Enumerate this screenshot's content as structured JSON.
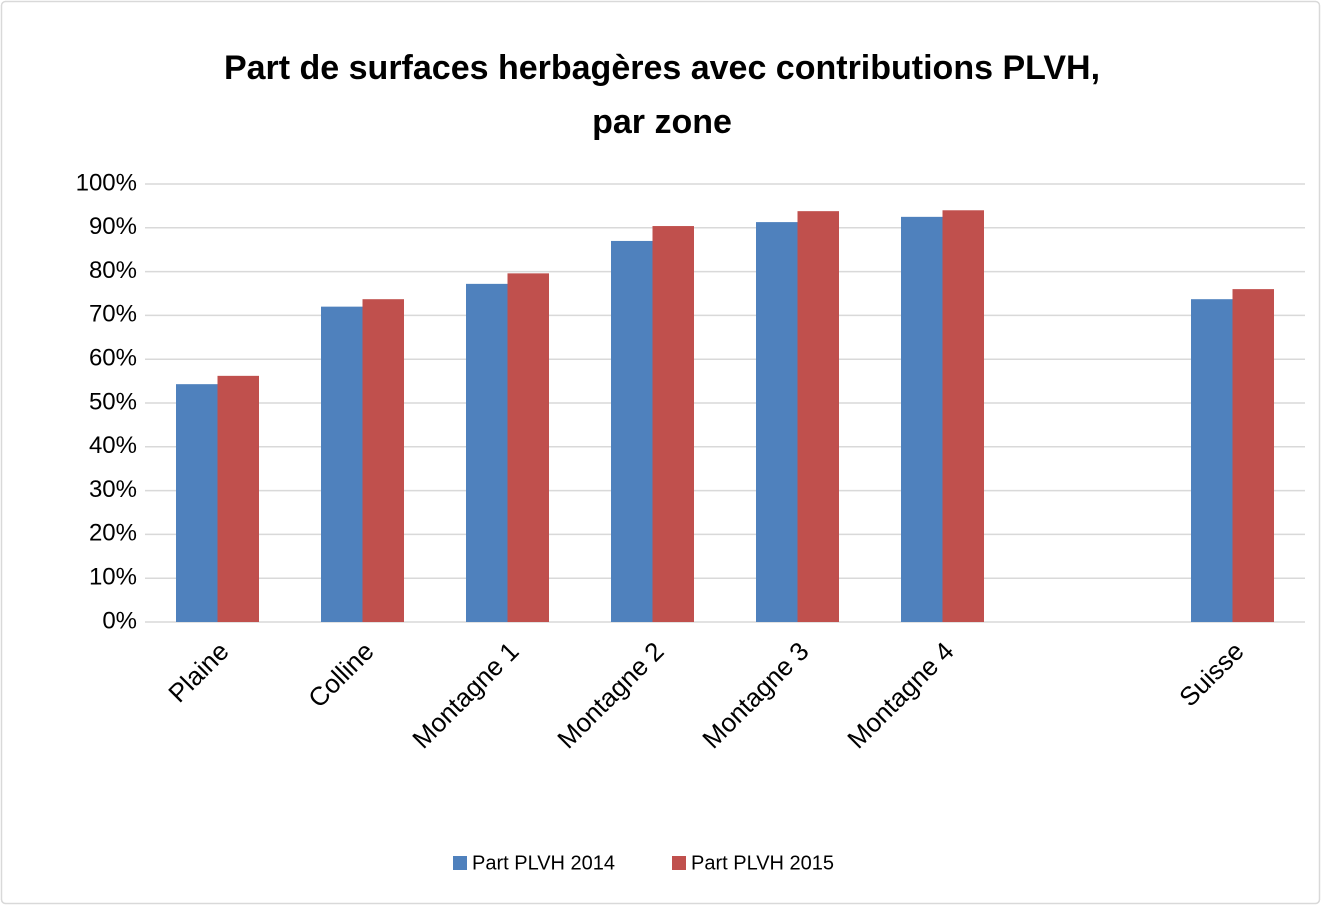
{
  "chart_data": {
    "type": "bar",
    "title": [
      "Part de surfaces herbagères avec contributions PLVH,",
      "par zone"
    ],
    "categories": [
      "Plaine",
      "Colline",
      "Montagne 1",
      "Montagne 2",
      "Montagne 3",
      "Montagne 4",
      null,
      "Suisse"
    ],
    "series": [
      {
        "name": "Part PLVH 2014",
        "color": "#4f81bd",
        "values": [
          54.3,
          72,
          77.2,
          87,
          91.3,
          92.5,
          null,
          73.7
        ]
      },
      {
        "name": "Part PLVH 2015",
        "color": "#c0504d",
        "values": [
          56.2,
          73.7,
          79.6,
          90.4,
          93.8,
          94,
          null,
          76
        ]
      }
    ],
    "ylim": [
      0,
      100
    ],
    "yticks": [
      {
        "value": 0,
        "label": "0%"
      },
      {
        "value": 10,
        "label": "10%"
      },
      {
        "value": 20,
        "label": "20%"
      },
      {
        "value": 30,
        "label": "30%"
      },
      {
        "value": 40,
        "label": "40%"
      },
      {
        "value": 50,
        "label": "50%"
      },
      {
        "value": 60,
        "label": "60%"
      },
      {
        "value": 70,
        "label": "70%"
      },
      {
        "value": 80,
        "label": "80%"
      },
      {
        "value": 90,
        "label": "90%"
      },
      {
        "value": 100,
        "label": "100%"
      }
    ],
    "grid": true,
    "legend": "bottom"
  }
}
